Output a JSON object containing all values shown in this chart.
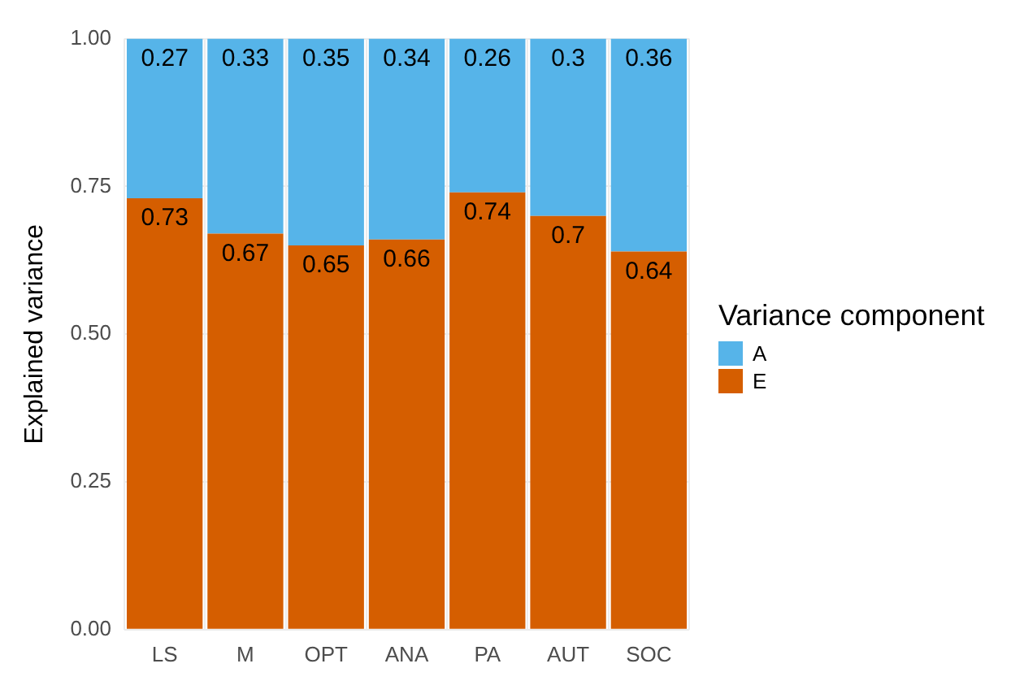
{
  "chart_data": {
    "type": "bar",
    "stacked": true,
    "ylabel": "Explained variance",
    "legend_title": "Variance component",
    "legend": "right",
    "grid": true,
    "data_labels": true,
    "categories": [
      "LS",
      "M",
      "OPT",
      "ANA",
      "PA",
      "AUT",
      "SOC"
    ],
    "series": [
      {
        "name": "E",
        "color": "#d55e00",
        "values": [
          0.73,
          0.67,
          0.65,
          0.66,
          0.74,
          0.7,
          0.64
        ]
      },
      {
        "name": "A",
        "color": "#56b4e9",
        "values": [
          0.27,
          0.33,
          0.35,
          0.34,
          0.26,
          0.3,
          0.36
        ]
      }
    ],
    "ylim": [
      0,
      1
    ],
    "yticks": [
      {
        "value": 0,
        "label": "0.00"
      },
      {
        "value": 0.25,
        "label": "0.25"
      },
      {
        "value": 0.5,
        "label": "0.50"
      },
      {
        "value": 0.75,
        "label": "0.75"
      },
      {
        "value": 1,
        "label": "1.00"
      }
    ]
  }
}
